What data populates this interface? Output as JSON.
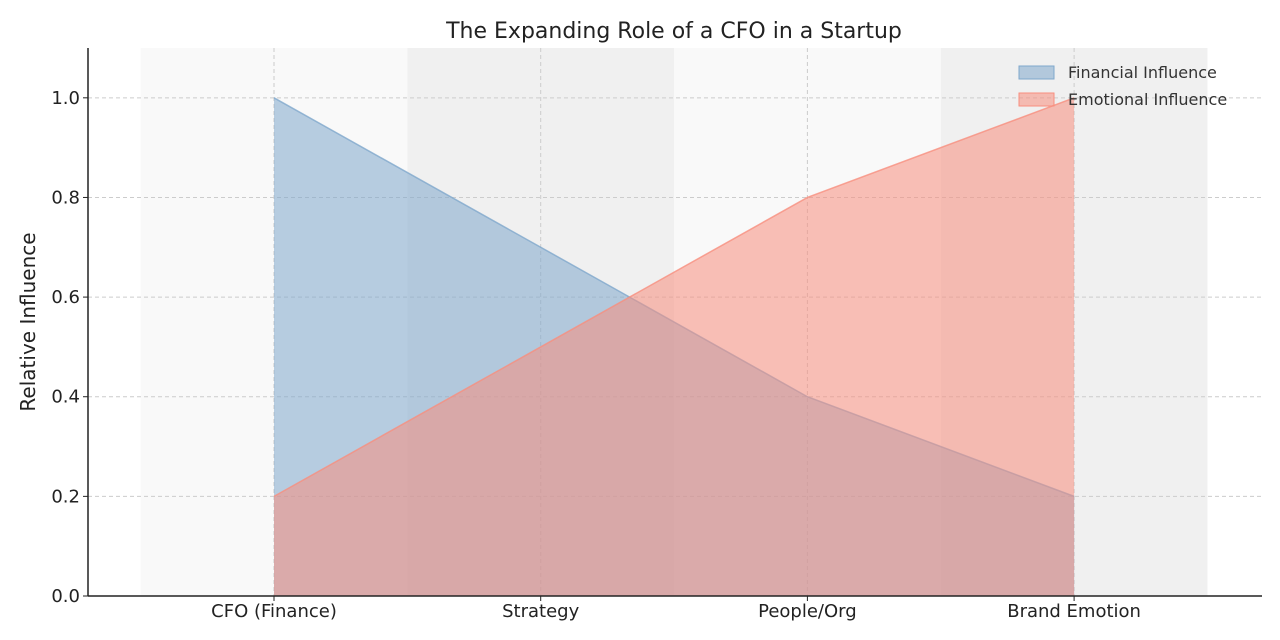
{
  "chart_data": {
    "type": "area",
    "title": "The Expanding Role of a CFO in a Startup",
    "xlabel": "",
    "ylabel": "Relative Influence",
    "categories": [
      "CFO (Finance)",
      "Strategy",
      "People/Org",
      "Brand Emotion"
    ],
    "series": [
      {
        "name": "Financial Influence",
        "values": [
          1.0,
          0.7,
          0.4,
          0.2
        ],
        "color": "#7fa8cc"
      },
      {
        "name": "Emotional Influence",
        "values": [
          0.2,
          0.5,
          0.8,
          1.0
        ],
        "color": "#f88e7e"
      }
    ],
    "ylim": [
      0,
      1.1
    ],
    "yticks": [
      0.0,
      0.2,
      0.4,
      0.6,
      0.8,
      1.0
    ],
    "ytick_labels": [
      "0.0",
      "0.2",
      "0.4",
      "0.6",
      "0.8",
      "1.0"
    ],
    "grid": true,
    "legend_position": "top-right"
  }
}
